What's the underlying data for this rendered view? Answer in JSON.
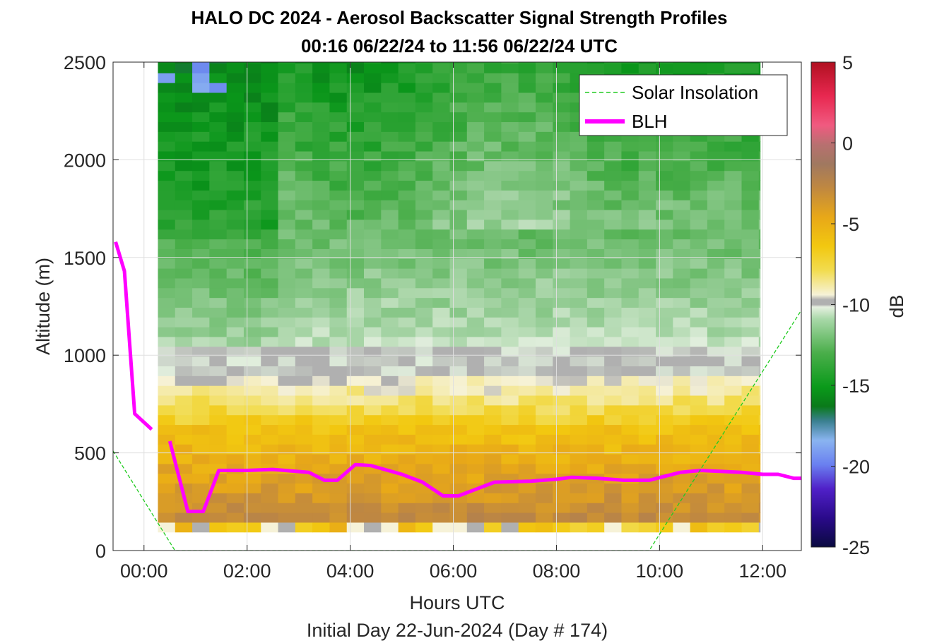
{
  "chart_data": {
    "type": "heatmap",
    "title": "HALO DC 2024 - Aerosol Backscatter Signal Strength Profiles",
    "subtitle": "00:16 06/22/24 to 11:56 06/22/24  UTC",
    "xlabel": "Hours UTC",
    "xlabel2": "Initial Day 22-Jun-2024 (Day # 174)",
    "ylabel": "Altitude (m)",
    "colorbar_label": "dB",
    "xlim": [
      -0.6,
      12.75
    ],
    "ylim": [
      0,
      2500
    ],
    "x_ticks": [
      0,
      2,
      4,
      6,
      8,
      10,
      12
    ],
    "x_tick_labels": [
      "00:00",
      "02:00",
      "04:00",
      "06:00",
      "08:00",
      "10:00",
      "12:00"
    ],
    "y_ticks": [
      0,
      500,
      1000,
      1500,
      2000,
      2500
    ],
    "y_tick_labels": [
      "0",
      "500",
      "1000",
      "1500",
      "2000",
      "2500"
    ],
    "clim": [
      -25,
      5
    ],
    "cbar_ticks": [
      5,
      0,
      -5,
      -10,
      -15,
      -20,
      -25
    ],
    "cbar_tick_labels": [
      "5",
      "0",
      "-5",
      "-10",
      "-15",
      "-20",
      "-25"
    ],
    "grid": true,
    "legend_position": "top-right",
    "legend": [
      {
        "name": "Solar Insolation",
        "style": "dashed",
        "color": "#22cc22"
      },
      {
        "name": "BLH",
        "style": "solid",
        "color": "#ff00ff"
      }
    ],
    "heatmap": {
      "x_start": 0.27,
      "x_end": 11.95,
      "dx": 0.333,
      "y_start": 95,
      "y_end": 2500,
      "dy": 50,
      "description_of_values": "dB: ~-9 near-surface band, -3 to -6 in 150-600 m, -7 to -10 near 700-900 m, -11 to -13 from 1000-1600 m, -14 to -17 aloft"
    },
    "series": [
      {
        "name": "BLH",
        "x": [
          -0.55,
          -0.38,
          -0.18,
          0.15
        ],
        "y": [
          1580,
          1430,
          700,
          620
        ]
      },
      {
        "name": "BLH",
        "x": [
          0.5,
          0.85,
          1.15,
          1.45,
          2.0,
          2.5,
          3.2,
          3.5,
          3.75,
          4.1,
          4.4,
          5.0,
          5.4,
          5.8,
          6.1,
          6.5,
          6.8,
          7.5,
          8.0,
          8.3,
          8.8,
          9.3,
          9.8,
          10.1,
          10.4,
          10.8,
          11.2,
          11.6,
          12.0,
          12.3,
          12.6,
          12.75
        ],
        "y": [
          560,
          200,
          200,
          410,
          410,
          415,
          400,
          360,
          360,
          440,
          435,
          390,
          350,
          280,
          280,
          320,
          350,
          355,
          365,
          375,
          370,
          360,
          360,
          380,
          400,
          410,
          405,
          400,
          390,
          390,
          370,
          370
        ]
      },
      {
        "name": "Solar Insolation",
        "x": [
          -0.6,
          0.6,
          9.8,
          12.75
        ],
        "y": [
          510,
          0,
          0,
          1230
        ]
      }
    ]
  }
}
